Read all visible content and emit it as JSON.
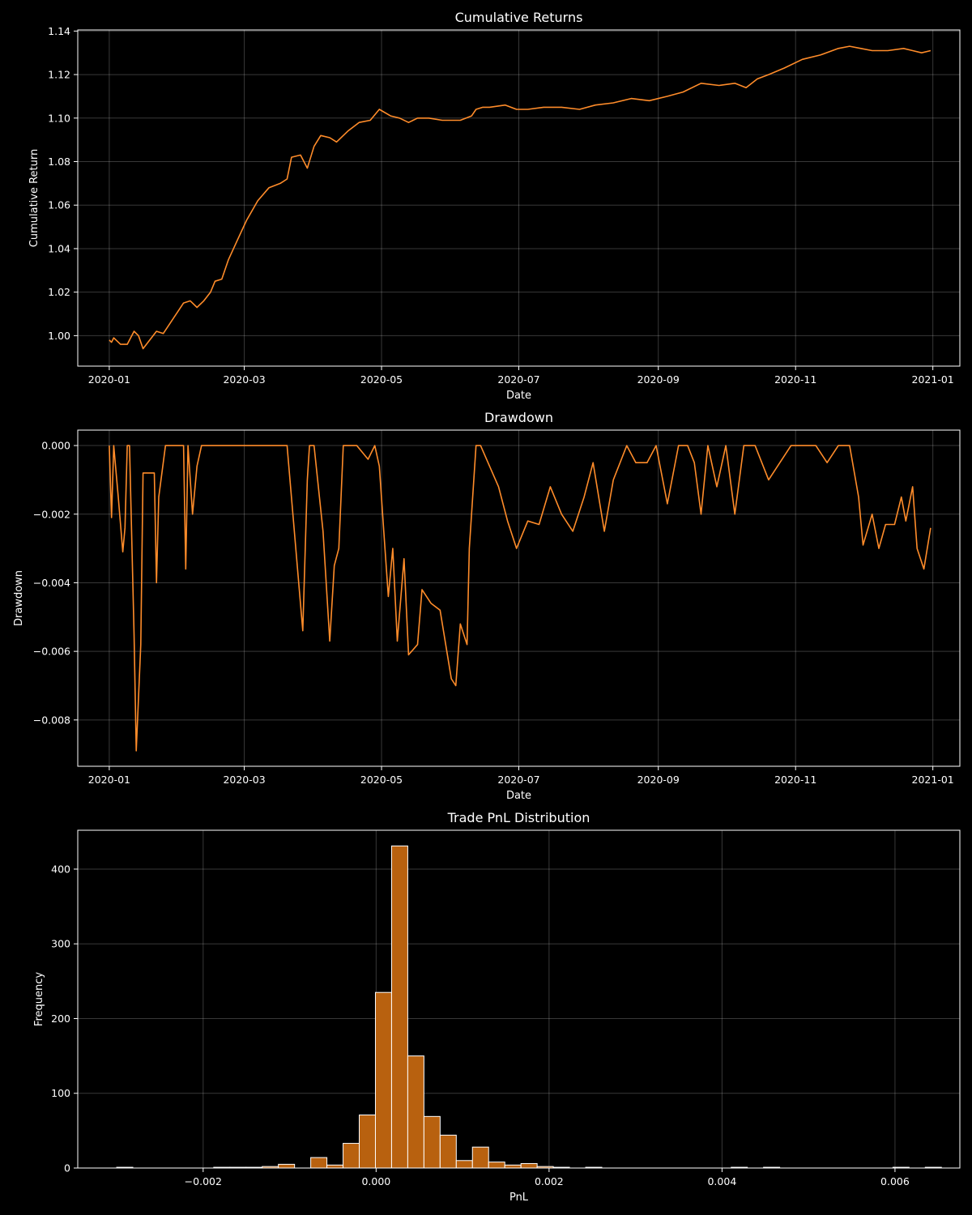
{
  "colors": {
    "background": "#000000",
    "line": "#ff8c2a",
    "bar_fill": "#b8610f",
    "bar_edge": "#ffffff",
    "text": "#ffffff"
  },
  "chart_data": [
    {
      "id": "cumret",
      "type": "line",
      "title": "Cumulative Returns",
      "xlabel": "Date",
      "ylabel": "Cumulative Return",
      "xlim": [
        "2019-12-18",
        "2021-01-13"
      ],
      "ylim": [
        0.986,
        1.1405
      ],
      "x_ticks": [
        {
          "value": "2020-01-01",
          "label": "2020-01"
        },
        {
          "value": "2020-03-01",
          "label": "2020-03"
        },
        {
          "value": "2020-05-01",
          "label": "2020-05"
        },
        {
          "value": "2020-07-01",
          "label": "2020-07"
        },
        {
          "value": "2020-09-01",
          "label": "2020-09"
        },
        {
          "value": "2020-11-01",
          "label": "2020-11"
        },
        {
          "value": "2021-01-01",
          "label": "2021-01"
        }
      ],
      "y_ticks": [
        {
          "value": 1.0,
          "label": "1.00"
        },
        {
          "value": 1.02,
          "label": "1.02"
        },
        {
          "value": 1.04,
          "label": "1.04"
        },
        {
          "value": 1.06,
          "label": "1.06"
        },
        {
          "value": 1.08,
          "label": "1.08"
        },
        {
          "value": 1.1,
          "label": "1.10"
        },
        {
          "value": 1.12,
          "label": "1.12"
        },
        {
          "value": 1.14,
          "label": "1.14"
        }
      ],
      "grid": true,
      "series": [
        {
          "x": [
            "2020-01-01",
            "2020-01-02",
            "2020-01-03",
            "2020-01-06",
            "2020-01-09",
            "2020-01-12",
            "2020-01-14",
            "2020-01-16",
            "2020-01-19",
            "2020-01-22",
            "2020-01-25",
            "2020-02-03",
            "2020-02-06",
            "2020-02-09",
            "2020-02-12",
            "2020-02-15",
            "2020-02-17",
            "2020-02-20",
            "2020-02-23",
            "2020-02-27",
            "2020-03-02",
            "2020-03-07",
            "2020-03-12",
            "2020-03-17",
            "2020-03-20",
            "2020-03-22",
            "2020-03-26",
            "2020-03-29",
            "2020-04-01",
            "2020-04-04",
            "2020-04-08",
            "2020-04-11",
            "2020-04-16",
            "2020-04-21",
            "2020-04-26",
            "2020-04-30",
            "2020-05-05",
            "2020-05-09",
            "2020-05-13",
            "2020-05-17",
            "2020-05-22",
            "2020-05-28",
            "2020-06-05",
            "2020-06-10",
            "2020-06-12",
            "2020-06-15",
            "2020-06-18",
            "2020-06-25",
            "2020-06-30",
            "2020-07-05",
            "2020-07-12",
            "2020-07-20",
            "2020-07-28",
            "2020-08-04",
            "2020-08-12",
            "2020-08-20",
            "2020-08-28",
            "2020-09-05",
            "2020-09-12",
            "2020-09-20",
            "2020-09-28",
            "2020-10-05",
            "2020-10-10",
            "2020-10-15",
            "2020-10-20",
            "2020-10-27",
            "2020-11-04",
            "2020-11-12",
            "2020-11-20",
            "2020-11-25",
            "2020-11-30",
            "2020-12-05",
            "2020-12-12",
            "2020-12-19",
            "2020-12-23",
            "2020-12-27",
            "2020-12-31"
          ],
          "y": [
            0.998,
            0.997,
            0.999,
            0.996,
            0.996,
            1.002,
            1.0,
            0.994,
            0.998,
            1.002,
            1.001,
            1.015,
            1.016,
            1.013,
            1.016,
            1.02,
            1.025,
            1.026,
            1.035,
            1.044,
            1.053,
            1.062,
            1.068,
            1.07,
            1.072,
            1.082,
            1.083,
            1.077,
            1.087,
            1.092,
            1.091,
            1.089,
            1.094,
            1.098,
            1.099,
            1.104,
            1.101,
            1.1,
            1.098,
            1.1,
            1.1,
            1.099,
            1.099,
            1.101,
            1.104,
            1.105,
            1.105,
            1.106,
            1.104,
            1.104,
            1.105,
            1.105,
            1.104,
            1.106,
            1.107,
            1.109,
            1.108,
            1.11,
            1.112,
            1.116,
            1.115,
            1.116,
            1.114,
            1.118,
            1.12,
            1.123,
            1.127,
            1.129,
            1.132,
            1.133,
            1.132,
            1.131,
            1.131,
            1.132,
            1.131,
            1.13,
            1.131
          ]
        }
      ]
    },
    {
      "id": "drawdown",
      "type": "line",
      "title": "Drawdown",
      "xlabel": "Date",
      "ylabel": "Drawdown",
      "xlim": [
        "2019-12-18",
        "2021-01-13"
      ],
      "ylim": [
        -0.00935,
        0.00045
      ],
      "x_ticks": [
        {
          "value": "2020-01-01",
          "label": "2020-01"
        },
        {
          "value": "2020-03-01",
          "label": "2020-03"
        },
        {
          "value": "2020-05-01",
          "label": "2020-05"
        },
        {
          "value": "2020-07-01",
          "label": "2020-07"
        },
        {
          "value": "2020-09-01",
          "label": "2020-09"
        },
        {
          "value": "2020-11-01",
          "label": "2020-11"
        },
        {
          "value": "2021-01-01",
          "label": "2021-01"
        }
      ],
      "y_ticks": [
        {
          "value": 0.0,
          "label": "0.000"
        },
        {
          "value": -0.002,
          "label": "−0.002"
        },
        {
          "value": -0.004,
          "label": "−0.004"
        },
        {
          "value": -0.006,
          "label": "−0.006"
        },
        {
          "value": -0.008,
          "label": "−0.008"
        }
      ],
      "grid": true,
      "series": [
        {
          "x": [
            "2020-01-01",
            "2020-01-02",
            "2020-01-03",
            "2020-01-05",
            "2020-01-07",
            "2020-01-08",
            "2020-01-09",
            "2020-01-10",
            "2020-01-12",
            "2020-01-13",
            "2020-01-15",
            "2020-01-16",
            "2020-01-21",
            "2020-01-22",
            "2020-01-23",
            "2020-01-26",
            "2020-02-03",
            "2020-02-04",
            "2020-02-05",
            "2020-02-07",
            "2020-02-09",
            "2020-02-11",
            "2020-02-12",
            "2020-02-15",
            "2020-02-25",
            "2020-03-10",
            "2020-03-20",
            "2020-03-27",
            "2020-03-29",
            "2020-03-30",
            "2020-04-01",
            "2020-04-05",
            "2020-04-08",
            "2020-04-10",
            "2020-04-12",
            "2020-04-14",
            "2020-04-20",
            "2020-04-25",
            "2020-04-28",
            "2020-04-30",
            "2020-05-02",
            "2020-05-04",
            "2020-05-06",
            "2020-05-08",
            "2020-05-11",
            "2020-05-13",
            "2020-05-17",
            "2020-05-19",
            "2020-05-23",
            "2020-05-27",
            "2020-06-01",
            "2020-06-03",
            "2020-06-05",
            "2020-06-08",
            "2020-06-09",
            "2020-06-12",
            "2020-06-14",
            "2020-06-22",
            "2020-06-26",
            "2020-06-30",
            "2020-07-05",
            "2020-07-10",
            "2020-07-15",
            "2020-07-20",
            "2020-07-25",
            "2020-07-30",
            "2020-08-03",
            "2020-08-08",
            "2020-08-12",
            "2020-08-18",
            "2020-08-22",
            "2020-08-27",
            "2020-08-31",
            "2020-09-05",
            "2020-09-10",
            "2020-09-14",
            "2020-09-17",
            "2020-09-20",
            "2020-09-23",
            "2020-09-27",
            "2020-10-01",
            "2020-10-05",
            "2020-10-09",
            "2020-10-14",
            "2020-10-20",
            "2020-10-30",
            "2020-11-10",
            "2020-11-15",
            "2020-11-20",
            "2020-11-25",
            "2020-11-29",
            "2020-12-01",
            "2020-12-05",
            "2020-12-08",
            "2020-12-11",
            "2020-12-15",
            "2020-12-18",
            "2020-12-20",
            "2020-12-23",
            "2020-12-25",
            "2020-12-28",
            "2020-12-31"
          ],
          "y": [
            0.0,
            -0.0021,
            0.0,
            -0.0015,
            -0.0031,
            -0.0024,
            0.0,
            0.0,
            -0.0055,
            -0.0089,
            -0.0058,
            -0.0008,
            -0.0008,
            -0.004,
            -0.0015,
            0.0,
            0.0,
            -0.0036,
            0.0,
            -0.002,
            -0.0006,
            0.0,
            0.0,
            0.0,
            0.0,
            0.0,
            0.0,
            -0.0054,
            -0.001,
            0.0,
            0.0,
            -0.0025,
            -0.0057,
            -0.0035,
            -0.003,
            0.0,
            0.0,
            -0.0004,
            0.0,
            -0.0006,
            -0.0025,
            -0.0044,
            -0.003,
            -0.0057,
            -0.0033,
            -0.0061,
            -0.0058,
            -0.0042,
            -0.0046,
            -0.0048,
            -0.0068,
            -0.007,
            -0.0052,
            -0.0058,
            -0.003,
            0.0,
            0.0,
            -0.0012,
            -0.0022,
            -0.003,
            -0.0022,
            -0.0023,
            -0.0012,
            -0.002,
            -0.0025,
            -0.0015,
            -0.0005,
            -0.0025,
            -0.001,
            0.0,
            -0.0005,
            -0.0005,
            0.0,
            -0.0017,
            0.0,
            0.0,
            -0.0005,
            -0.002,
            0.0,
            -0.0012,
            0.0,
            -0.002,
            0.0,
            0.0,
            -0.001,
            0.0,
            0.0,
            -0.0005,
            0.0,
            0.0,
            -0.0015,
            -0.0029,
            -0.002,
            -0.003,
            -0.0023,
            -0.0023,
            -0.0015,
            -0.0022,
            -0.0012,
            -0.003,
            -0.0036,
            -0.0024
          ]
        }
      ]
    },
    {
      "id": "pnl_hist",
      "type": "bar",
      "title": "Trade PnL Distribution",
      "xlabel": "PnL",
      "ylabel": "Frequency",
      "xlim": [
        -0.00345,
        0.00675
      ],
      "ylim": [
        0,
        452
      ],
      "x_ticks": [
        {
          "value": -0.002,
          "label": "−0.002"
        },
        {
          "value": 0.0,
          "label": "0.000"
        },
        {
          "value": 0.002,
          "label": "0.002"
        },
        {
          "value": 0.004,
          "label": "0.004"
        },
        {
          "value": 0.006,
          "label": "0.006"
        }
      ],
      "y_ticks": [
        {
          "value": 0,
          "label": "0"
        },
        {
          "value": 100,
          "label": "100"
        },
        {
          "value": 200,
          "label": "200"
        },
        {
          "value": 300,
          "label": "300"
        },
        {
          "value": 400,
          "label": "400"
        }
      ],
      "grid": true,
      "bins": {
        "start": -0.003,
        "width": 0.000187
      },
      "values": [
        1,
        0,
        0,
        0,
        0,
        0,
        1,
        1,
        1,
        2,
        5,
        0,
        14,
        4,
        33,
        71,
        235,
        431,
        150,
        69,
        44,
        10,
        28,
        8,
        4,
        6,
        2,
        1,
        0,
        1,
        0,
        0,
        0,
        0,
        0,
        0,
        0,
        0,
        1,
        0,
        1,
        0,
        0,
        0,
        0,
        0,
        0,
        0,
        1,
        0,
        1
      ]
    }
  ]
}
